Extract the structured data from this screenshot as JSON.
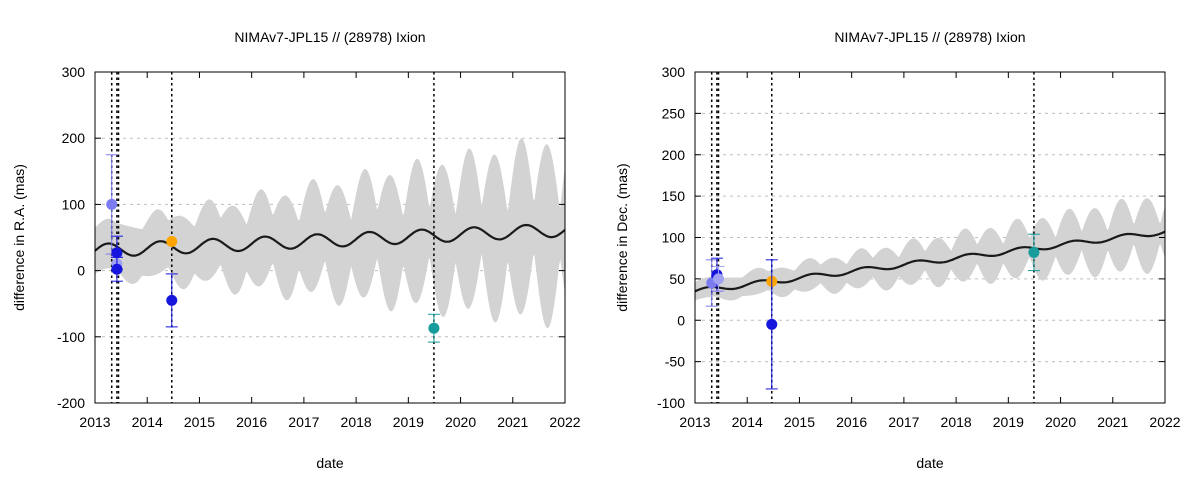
{
  "chart_data": [
    {
      "type": "scatter",
      "title": "NIMAv7-JPL15 // (28978) Ixion",
      "xlabel": "date",
      "ylabel": "difference in R.A. (mas)",
      "xlim": [
        2013,
        2022
      ],
      "ylim": [
        -200,
        300
      ],
      "xticks": [
        2013,
        2014,
        2015,
        2016,
        2017,
        2018,
        2019,
        2020,
        2021,
        2022
      ],
      "yticks": [
        -200,
        -100,
        0,
        100,
        200,
        300
      ],
      "grid": true,
      "vlines": [
        2013.32,
        2013.42,
        2013.45,
        2014.47,
        2019.49
      ],
      "model": {
        "base": 30,
        "slope": 3.5,
        "amp": 10,
        "period": 1.0,
        "phase": 2013.0
      },
      "band": {
        "base": 30,
        "slope": 3.5,
        "amp_low": 25,
        "amp_growth": 12,
        "period": 1.0,
        "phase": 2013.0
      },
      "points": [
        {
          "x": 2013.32,
          "y": 100,
          "err": 75,
          "color": "#7b7bf2"
        },
        {
          "x": 2013.42,
          "y": 10,
          "err": 12,
          "color": "#a2a2f5"
        },
        {
          "x": 2013.42,
          "y": 27,
          "err": 25,
          "color": "#1515dd"
        },
        {
          "x": 2013.42,
          "y": 2,
          "err": 18,
          "color": "#1515dd"
        },
        {
          "x": 2014.47,
          "y": 44,
          "err": 0,
          "color": "#ffa500"
        },
        {
          "x": 2014.47,
          "y": -45,
          "err": 40,
          "color": "#1515dd"
        },
        {
          "x": 2019.49,
          "y": -87,
          "err": 21,
          "color": "#179b9b"
        }
      ]
    },
    {
      "type": "scatter",
      "title": "NIMAv7-JPL15 // (28978) Ixion",
      "xlabel": "date",
      "ylabel": "difference in Dec. (mas)",
      "xlim": [
        2013,
        2022
      ],
      "ylim": [
        -100,
        300
      ],
      "xticks": [
        2013,
        2014,
        2015,
        2016,
        2017,
        2018,
        2019,
        2020,
        2021,
        2022
      ],
      "yticks": [
        -100,
        -50,
        0,
        50,
        100,
        150,
        200,
        250,
        300
      ],
      "grid": true,
      "vlines": [
        2013.32,
        2013.42,
        2013.45,
        2014.47,
        2019.49
      ],
      "model": {
        "base": 35,
        "slope": 8.0,
        "amp": 3,
        "period": 1.0,
        "phase": 2013.0
      },
      "band": {
        "base": 35,
        "slope": 8.0,
        "amp_low": 8,
        "amp_growth": 4,
        "period": 1.0,
        "phase": 2013.0
      },
      "points": [
        {
          "x": 2013.32,
          "y": 45,
          "err": 28,
          "color": "#7b7bf2"
        },
        {
          "x": 2013.42,
          "y": 55,
          "err": 20,
          "color": "#1515dd"
        },
        {
          "x": 2013.45,
          "y": 50,
          "err": 15,
          "color": "#a2a2f5"
        },
        {
          "x": 2014.47,
          "y": 47,
          "err": 0,
          "color": "#ffa500"
        },
        {
          "x": 2014.47,
          "y": -5,
          "err": 78,
          "color": "#1515dd"
        },
        {
          "x": 2019.49,
          "y": 82,
          "err": 22,
          "color": "#179b9b"
        }
      ]
    }
  ]
}
